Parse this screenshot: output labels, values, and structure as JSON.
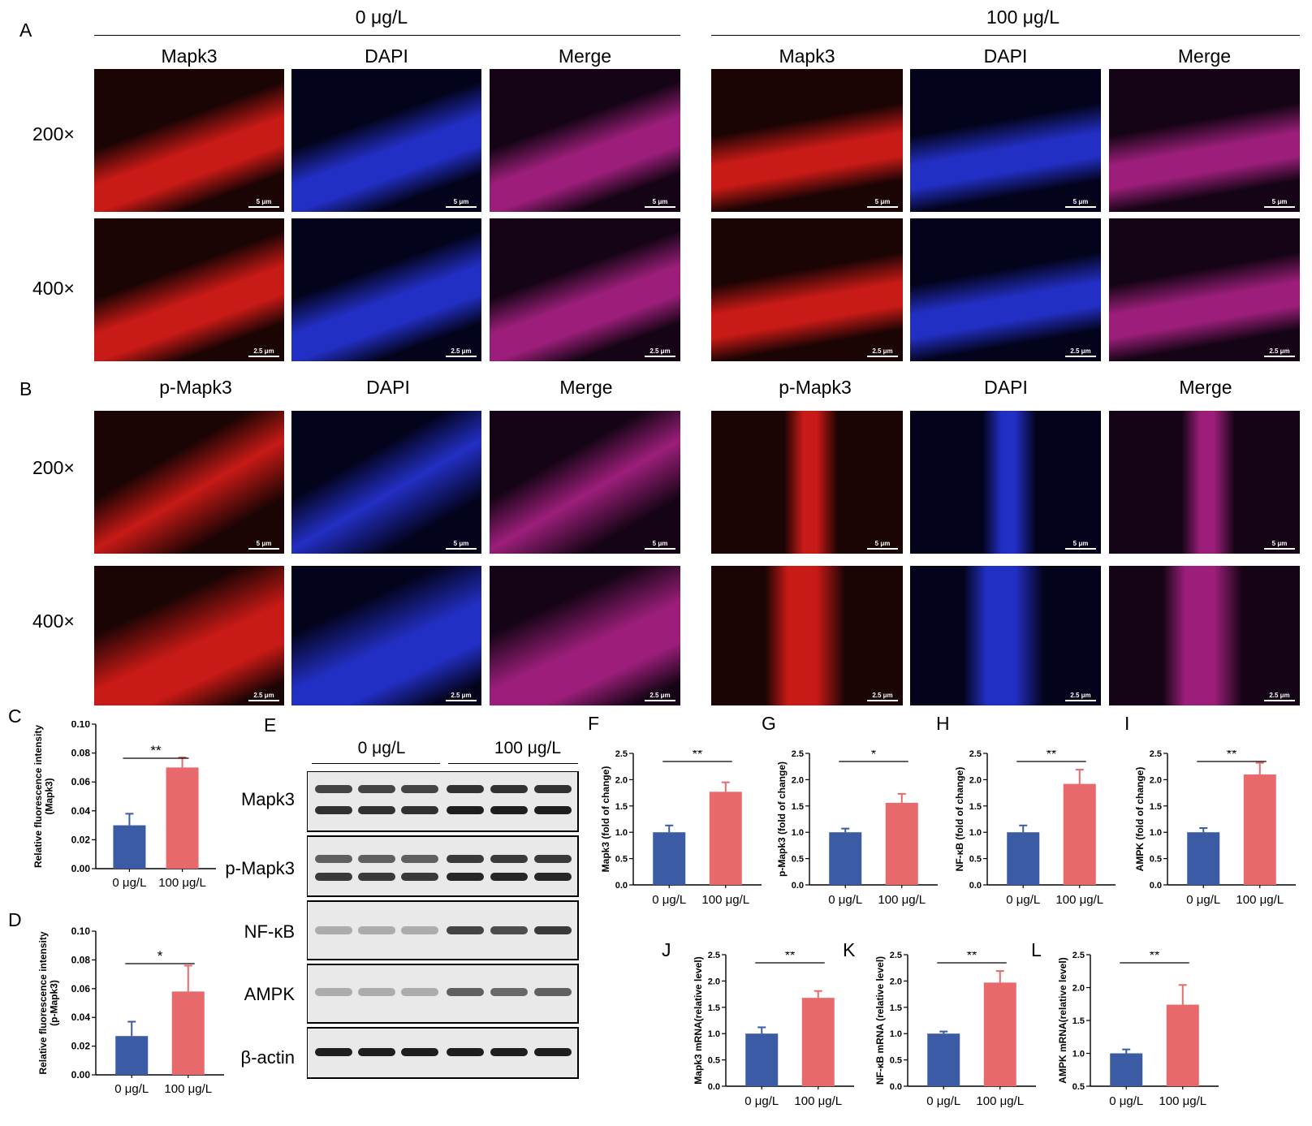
{
  "panels": [
    "A",
    "B",
    "C",
    "D",
    "E",
    "F",
    "G",
    "H",
    "I",
    "J",
    "K",
    "L"
  ],
  "groups": [
    "0 μg/L",
    "100 μg/L"
  ],
  "channels_a": [
    "Mapk3",
    "DAPI",
    "Merge"
  ],
  "channels_b": [
    "p-Mapk3",
    "DAPI",
    "Merge"
  ],
  "magnifications": [
    "200×",
    "400×"
  ],
  "scale_bars": {
    "low": "5 μm",
    "high": "2.5 μm"
  },
  "colors": {
    "blue": "#3b5ba5",
    "red": "#e8696b",
    "mapk3": "#e0211c",
    "dapi": "#2a36d8",
    "merge": "#b3208a"
  },
  "blot": {
    "lanes_per_group": 3,
    "proteins": [
      "Mapk3",
      "p-Mapk3",
      "NF-κB",
      "AMPK",
      "β-actin"
    ],
    "header": [
      "0 μg/L",
      "100 μg/L"
    ]
  },
  "chart_data": [
    {
      "id": "C",
      "type": "bar",
      "categories": [
        "0 μg/L",
        "100 μg/L"
      ],
      "values": [
        0.03,
        0.07
      ],
      "errors": [
        0.008,
        0.007
      ],
      "ylabel": "Relative fluorescence intensity (Mapk3)",
      "ylim": [
        0,
        0.1
      ],
      "yticks": [
        "0.00",
        "0.02",
        "0.04",
        "0.06",
        "0.08",
        "0.10"
      ],
      "significance": "**"
    },
    {
      "id": "D",
      "type": "bar",
      "categories": [
        "0 μg/L",
        "100 μg/L"
      ],
      "values": [
        0.027,
        0.058
      ],
      "errors": [
        0.01,
        0.018
      ],
      "ylabel": "Relative fluorescence intensity (p-Mapk3)",
      "ylim": [
        0,
        0.1
      ],
      "yticks": [
        "0.00",
        "0.02",
        "0.04",
        "0.06",
        "0.08",
        "0.10"
      ],
      "significance": "*"
    },
    {
      "id": "F",
      "type": "bar",
      "categories": [
        "0 μg/L",
        "100 μg/L"
      ],
      "values": [
        1.0,
        1.77
      ],
      "errors": [
        0.13,
        0.18
      ],
      "ylabel": "Mapk3 (fold of change)",
      "ylim": [
        0,
        2.5
      ],
      "yticks": [
        "0.0",
        "0.5",
        "1.0",
        "1.5",
        "2.0",
        "2.5"
      ],
      "significance": "**"
    },
    {
      "id": "G",
      "type": "bar",
      "categories": [
        "0 μg/L",
        "100 μg/L"
      ],
      "values": [
        1.0,
        1.56
      ],
      "errors": [
        0.07,
        0.17
      ],
      "ylabel": "p-Mapk3 (fold of change)",
      "ylim": [
        0,
        2.5
      ],
      "yticks": [
        "0.0",
        "0.5",
        "1.0",
        "1.5",
        "2.0",
        "2.5"
      ],
      "significance": "*"
    },
    {
      "id": "H",
      "type": "bar",
      "categories": [
        "0 μg/L",
        "100 μg/L"
      ],
      "values": [
        1.0,
        1.92
      ],
      "errors": [
        0.13,
        0.27
      ],
      "ylabel": "NF-κB (fold of change)",
      "ylim": [
        0,
        2.5
      ],
      "yticks": [
        "0.0",
        "0.5",
        "1.0",
        "1.5",
        "2.0",
        "2.5"
      ],
      "significance": "**"
    },
    {
      "id": "I",
      "type": "bar",
      "categories": [
        "0 μg/L",
        "100 μg/L"
      ],
      "values": [
        1.0,
        2.1
      ],
      "errors": [
        0.08,
        0.22
      ],
      "ylabel": "AMPK (fold of change)",
      "ylim": [
        0,
        2.5
      ],
      "yticks": [
        "0.0",
        "0.5",
        "1.0",
        "1.5",
        "2.0",
        "2.5"
      ],
      "significance": "**"
    },
    {
      "id": "J",
      "type": "bar",
      "categories": [
        "0 μg/L",
        "100 μg/L"
      ],
      "values": [
        1.0,
        1.68
      ],
      "errors": [
        0.12,
        0.13
      ],
      "ylabel": "Mapk3 mRNA(relative level)",
      "ylim": [
        0,
        2.5
      ],
      "yticks": [
        "0.0",
        "0.5",
        "1.0",
        "1.5",
        "2.0",
        "2.5"
      ],
      "significance": "**"
    },
    {
      "id": "K",
      "type": "bar",
      "categories": [
        "0 μg/L",
        "100 μg/L"
      ],
      "values": [
        1.0,
        1.97
      ],
      "errors": [
        0.04,
        0.22
      ],
      "ylabel": "NF-κB mRNA (relative level)",
      "ylim": [
        0,
        2.5
      ],
      "yticks": [
        "0.0",
        "0.5",
        "1.0",
        "1.5",
        "2.0",
        "2.5"
      ],
      "significance": "**"
    },
    {
      "id": "L",
      "type": "bar",
      "categories": [
        "0 μg/L",
        "100 μg/L"
      ],
      "values": [
        1.0,
        1.74
      ],
      "errors": [
        0.06,
        0.3
      ],
      "ylabel": "AMPK mRNA(relative level)",
      "ylim": [
        0.5,
        2.5
      ],
      "yticks": [
        "0.5",
        "1.0",
        "1.5",
        "2.0",
        "2.5"
      ],
      "significance": "**"
    }
  ]
}
